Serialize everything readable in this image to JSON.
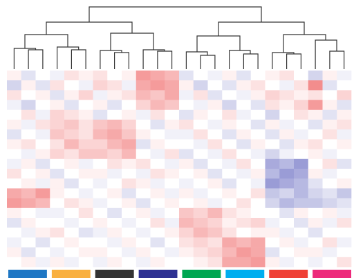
{
  "chart_data": {
    "type": "heatmap",
    "colormap": {
      "low": "#6f72c4",
      "mid": "#ffffff",
      "high": "#f07070"
    },
    "vlim": [
      -1,
      1
    ],
    "series": [
      {
        "color": "#1f77c4"
      },
      {
        "color": "#f9b040"
      },
      {
        "color": "#333333"
      },
      {
        "color": "#2e3192"
      },
      {
        "color": "#00a651"
      },
      {
        "color": "#00aeef"
      },
      {
        "color": "#ef4136"
      },
      {
        "color": "#ed2a7b"
      }
    ],
    "values": [
      [
        0.1,
        -0.2,
        0.0,
        -0.1,
        0.2,
        0.1,
        0.2,
        0.0,
        0.1,
        0.7,
        0.6,
        0.5,
        -0.2,
        0.0,
        -0.1,
        0.1,
        -0.2,
        0.0,
        0.1,
        0.2,
        0.0,
        -0.3,
        0.1,
        -0.1
      ],
      [
        -0.3,
        0.1,
        -0.2,
        0.2,
        0.0,
        -0.1,
        0.3,
        0.2,
        -0.1,
        0.6,
        0.7,
        0.6,
        0.1,
        -0.3,
        0.0,
        -0.2,
        0.1,
        0.2,
        0.0,
        -0.1,
        0.2,
        0.8,
        -0.2,
        0.0
      ],
      [
        0.2,
        0.0,
        0.1,
        -0.2,
        0.1,
        0.3,
        -0.1,
        0.1,
        0.2,
        0.5,
        0.4,
        0.6,
        -0.1,
        0.2,
        -0.2,
        0.0,
        -0.1,
        0.1,
        0.3,
        0.2,
        0.1,
        0.2,
        0.0,
        0.3
      ],
      [
        -0.1,
        -0.3,
        0.0,
        0.1,
        -0.2,
        0.0,
        0.1,
        -0.2,
        0.0,
        0.3,
        0.5,
        0.4,
        0.0,
        -0.1,
        0.1,
        -0.3,
        0.0,
        -0.2,
        0.2,
        0.1,
        0.3,
        0.7,
        0.1,
        -0.2
      ],
      [
        0.0,
        0.2,
        -0.1,
        0.3,
        0.2,
        0.1,
        -0.2,
        0.0,
        0.1,
        -0.1,
        0.2,
        0.0,
        -0.2,
        0.1,
        0.0,
        0.2,
        -0.1,
        0.0,
        -0.3,
        0.0,
        0.2,
        0.1,
        -0.2,
        0.1
      ],
      [
        0.1,
        -0.1,
        0.2,
        0.3,
        0.4,
        0.2,
        0.4,
        0.5,
        0.3,
        0.0,
        -0.2,
        0.1,
        0.2,
        0.0,
        -0.1,
        0.1,
        0.0,
        -0.2,
        0.1,
        -0.1,
        0.0,
        -0.2,
        0.1,
        0.2
      ],
      [
        -0.2,
        0.0,
        -0.1,
        0.4,
        0.3,
        0.2,
        0.5,
        0.6,
        0.4,
        0.1,
        0.0,
        -0.1,
        -0.1,
        0.2,
        0.0,
        -0.2,
        0.1,
        0.0,
        -0.2,
        0.1,
        -0.1,
        0.0,
        0.2,
        -0.1
      ],
      [
        0.1,
        0.2,
        0.0,
        0.2,
        0.5,
        0.3,
        0.3,
        0.5,
        0.6,
        -0.2,
        0.1,
        0.0,
        0.0,
        -0.1,
        0.2,
        0.0,
        -0.2,
        0.1,
        0.0,
        -0.2,
        0.1,
        0.2,
        0.0,
        0.1
      ],
      [
        0.0,
        -0.1,
        0.1,
        0.3,
        0.2,
        0.4,
        0.4,
        0.3,
        0.5,
        0.0,
        -0.1,
        0.2,
        -0.2,
        0.0,
        -0.1,
        0.2,
        0.0,
        -0.1,
        -0.3,
        -0.1,
        0.0,
        0.1,
        -0.1,
        0.0
      ],
      [
        -0.1,
        0.1,
        -0.2,
        0.0,
        0.1,
        -0.1,
        0.0,
        0.2,
        0.1,
        0.2,
        0.0,
        -0.1,
        0.1,
        -0.2,
        0.0,
        -0.1,
        0.2,
        0.0,
        -0.6,
        -0.5,
        -0.7,
        0.0,
        0.2,
        -0.2
      ],
      [
        0.2,
        0.0,
        0.1,
        -0.2,
        0.0,
        0.1,
        0.1,
        -0.1,
        0.0,
        -0.1,
        0.2,
        0.1,
        0.0,
        0.1,
        -0.2,
        0.0,
        -0.1,
        0.1,
        -0.5,
        -0.7,
        -0.6,
        0.1,
        -0.1,
        0.0
      ],
      [
        0.0,
        0.1,
        -0.1,
        0.1,
        -0.2,
        0.0,
        -0.1,
        0.0,
        0.2,
        0.1,
        -0.1,
        0.0,
        -0.1,
        0.0,
        0.1,
        -0.2,
        0.0,
        -0.1,
        -0.7,
        -0.6,
        -0.5,
        -0.2,
        0.0,
        0.1
      ],
      [
        0.6,
        0.5,
        0.7,
        0.1,
        0.0,
        -0.1,
        0.0,
        0.1,
        -0.2,
        0.0,
        0.1,
        -0.1,
        0.1,
        -0.1,
        0.0,
        0.1,
        0.0,
        0.2,
        -0.4,
        -0.3,
        -0.5,
        -0.3,
        -0.2,
        -0.4
      ],
      [
        0.7,
        0.6,
        0.5,
        0.0,
        0.2,
        0.1,
        -0.1,
        0.0,
        0.1,
        -0.2,
        0.0,
        0.1,
        0.0,
        0.1,
        -0.1,
        0.0,
        0.2,
        0.0,
        -0.3,
        -0.5,
        -0.4,
        -0.4,
        -0.3,
        -0.2
      ],
      [
        0.1,
        0.0,
        -0.1,
        -0.1,
        0.0,
        0.2,
        0.0,
        -0.2,
        0.0,
        0.1,
        -0.1,
        0.0,
        0.4,
        0.3,
        0.5,
        0.2,
        0.1,
        0.0,
        0.0,
        -0.2,
        0.1,
        0.0,
        0.1,
        -0.1
      ],
      [
        -0.2,
        0.1,
        0.0,
        0.0,
        -0.1,
        0.0,
        0.1,
        0.0,
        -0.1,
        0.0,
        0.2,
        -0.1,
        0.5,
        0.4,
        0.3,
        0.1,
        0.2,
        0.3,
        -0.1,
        0.0,
        -0.2,
        0.1,
        -0.1,
        0.2
      ],
      [
        0.0,
        -0.1,
        0.1,
        0.2,
        0.0,
        -0.2,
        -0.1,
        0.1,
        0.0,
        -0.1,
        0.0,
        0.1,
        0.3,
        0.5,
        0.4,
        0.2,
        0.0,
        0.1,
        0.1,
        -0.1,
        0.0,
        -0.2,
        0.0,
        0.0
      ],
      [
        -0.1,
        0.0,
        -0.2,
        0.0,
        0.1,
        0.0,
        0.0,
        -0.1,
        0.1,
        0.0,
        -0.2,
        0.0,
        0.2,
        0.3,
        0.2,
        0.6,
        0.5,
        0.6,
        0.0,
        0.1,
        -0.1,
        0.0,
        0.2,
        -0.1
      ],
      [
        0.1,
        -0.2,
        0.0,
        -0.1,
        0.0,
        0.1,
        0.1,
        0.0,
        -0.1,
        0.1,
        0.0,
        -0.1,
        0.1,
        0.2,
        0.3,
        0.5,
        0.7,
        0.6,
        -0.2,
        0.0,
        0.1,
        0.1,
        -0.1,
        0.0
      ],
      [
        0.0,
        0.1,
        -0.1,
        0.1,
        -0.1,
        0.0,
        -0.1,
        0.1,
        0.0,
        -0.1,
        0.1,
        0.0,
        0.0,
        0.1,
        0.2,
        0.6,
        0.6,
        0.7,
        0.1,
        -0.1,
        0.0,
        -0.1,
        0.0,
        0.2
      ]
    ]
  }
}
